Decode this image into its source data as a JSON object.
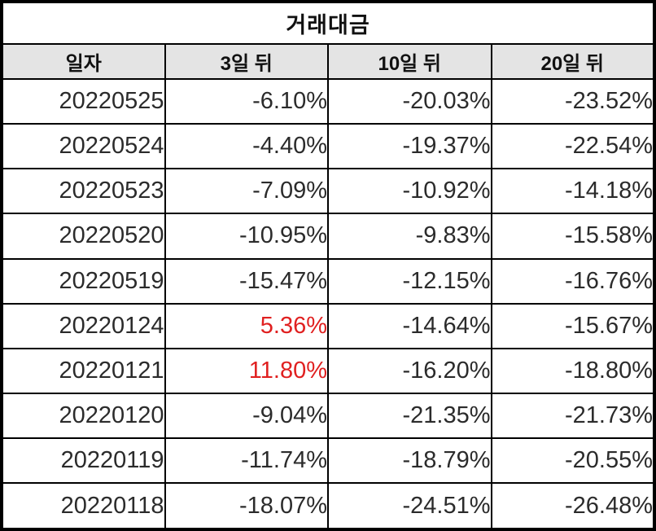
{
  "chart_data": {
    "type": "table",
    "title": "거래대금",
    "columns": [
      "일자",
      "3일 뒤",
      "10일 뒤",
      "20일 뒤"
    ],
    "rows": [
      [
        "20220525",
        "-6.10%",
        "-20.03%",
        "-23.52%"
      ],
      [
        "20220524",
        "-4.40%",
        "-19.37%",
        "-22.54%"
      ],
      [
        "20220523",
        "-7.09%",
        "-10.92%",
        "-14.18%"
      ],
      [
        "20220520",
        "-10.95%",
        "-9.83%",
        "-15.58%"
      ],
      [
        "20220519",
        "-15.47%",
        "-12.15%",
        "-16.76%"
      ],
      [
        "20220124",
        "5.36%",
        "-14.64%",
        "-15.67%"
      ],
      [
        "20220121",
        "11.80%",
        "-16.20%",
        "-18.80%"
      ],
      [
        "20220120",
        "-9.04%",
        "-21.35%",
        "-21.73%"
      ],
      [
        "20220119",
        "-11.74%",
        "-18.79%",
        "-20.55%"
      ],
      [
        "20220118",
        "-18.07%",
        "-24.51%",
        "-26.48%"
      ]
    ],
    "layout": {
      "legend": "none",
      "grid": "on",
      "positive_values_highlighted": true
    }
  },
  "colors": {
    "positive_value": "#e02020",
    "header_bg": "#e4e4e4",
    "border": "#000000",
    "text": "#2b2b2b"
  }
}
